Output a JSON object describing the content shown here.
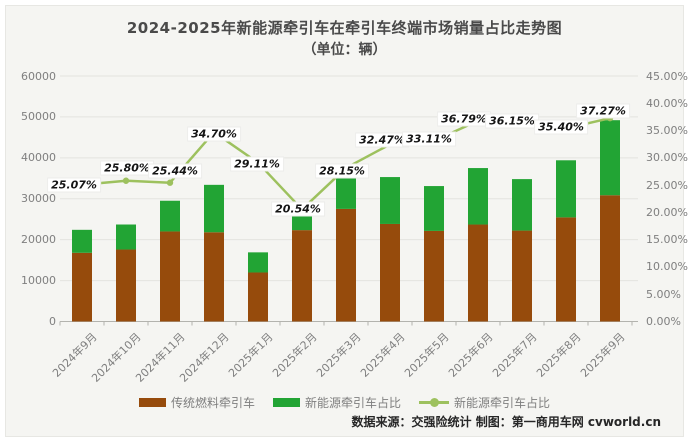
{
  "card": {
    "title": "2024-2025年新能源牵引车在牵引车终端市场销量占比走势图",
    "subtitle": "（单位：辆）",
    "footer": "数据来源：交强险统计 制图：第一商用车网 cvworld.cn"
  },
  "colors": {
    "background": "#f5f5f2",
    "traditional_bar": "#964B0C",
    "new_energy_bar": "#22A434",
    "share_line": "#9DC15E",
    "gridline": "#e3e3df",
    "axis_line": "#b3b3ae",
    "axis_text": "#7f7f7f",
    "title_text": "#4a4a4a",
    "data_label_text": "#151515"
  },
  "chart_data": {
    "type": "bar",
    "subtype": "stacked-bar-with-line",
    "title": "2024-2025年新能源牵引车在牵引车终端市场销量占比走势图",
    "subtitle": "（单位：辆）",
    "categories": [
      "2024年9月",
      "2024年10月",
      "2024年11月",
      "2024年12月",
      "2025年1月",
      "2025年2月",
      "2025年3月",
      "2025年4月",
      "2025年5月",
      "2025年6月",
      "2025年7月",
      "2025年8月",
      "2025年9月"
    ],
    "series": [
      {
        "name": "传统燃料牵引车",
        "type": "bar",
        "stack": true,
        "color": "#964B0C",
        "values": [
          16790,
          17590,
          22010,
          21810,
          11980,
          22330,
          27520,
          23840,
          22140,
          23700,
          22220,
          25450,
          30860
        ]
      },
      {
        "name": "新能源牵引车占比",
        "type": "bar",
        "stack": true,
        "color": "#22A434",
        "values": [
          5615,
          6115,
          7505,
          11590,
          4920,
          5770,
          10780,
          11460,
          10960,
          13800,
          12580,
          13950,
          18340
        ]
      },
      {
        "name": "新能源牵引车占比",
        "type": "line",
        "axis": "right",
        "color": "#9DC15E",
        "values": [
          25.07,
          25.8,
          25.44,
          34.7,
          29.11,
          20.54,
          28.15,
          32.47,
          33.11,
          36.79,
          36.15,
          35.4,
          37.27
        ]
      }
    ],
    "point_labels": [
      "25.07%",
      "25.80%",
      "25.44%",
      "34.70%",
      "29.11%",
      "20.54%",
      "28.15%",
      "32.47%",
      "33.11%",
      "36.79%",
      "36.15%",
      "35.40%",
      "37.27%"
    ],
    "left_axis": {
      "min": 0,
      "max": 60000,
      "tick_labels": [
        "0",
        "10000",
        "20000",
        "30000",
        "40000",
        "50000",
        "60000"
      ]
    },
    "right_axis": {
      "min": 0,
      "max": 45,
      "tick_labels": [
        "0.00%",
        "5.00%",
        "10.00%",
        "15.00%",
        "20.00%",
        "25.00%",
        "30.00%",
        "35.00%",
        "40.00%",
        "45.00%"
      ]
    },
    "grid": true,
    "legend_position": "bottom",
    "legend": [
      {
        "label": "传统燃料牵引车",
        "swatch": "bar",
        "color": "#964B0C"
      },
      {
        "label": "新能源牵引车占比",
        "swatch": "bar",
        "color": "#22A434"
      },
      {
        "label": "新能源牵引车占比",
        "swatch": "line",
        "color": "#9DC15E"
      }
    ]
  }
}
